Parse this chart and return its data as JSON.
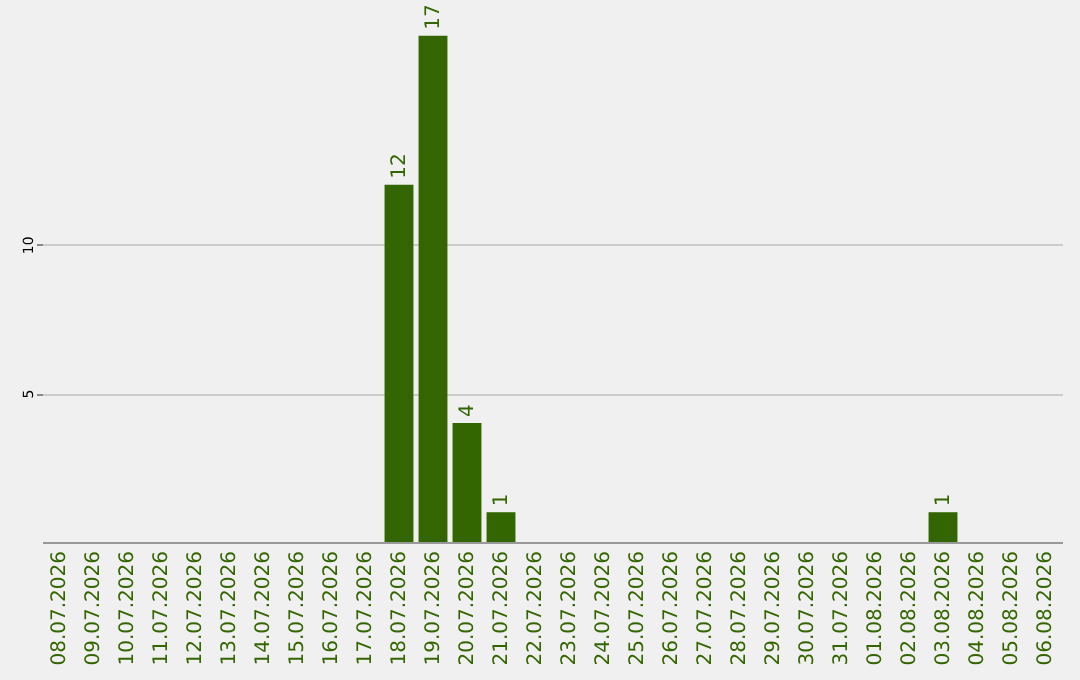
{
  "chart_data": {
    "type": "bar",
    "categories": [
      "08.07.2026",
      "09.07.2026",
      "10.07.2026",
      "11.07.2026",
      "12.07.2026",
      "13.07.2026",
      "14.07.2026",
      "15.07.2026",
      "16.07.2026",
      "17.07.2026",
      "18.07.2026",
      "19.07.2026",
      "20.07.2026",
      "21.07.2026",
      "22.07.2026",
      "23.07.2026",
      "24.07.2026",
      "25.07.2026",
      "26.07.2026",
      "27.07.2026",
      "28.07.2026",
      "29.07.2026",
      "30.07.2026",
      "31.07.2026",
      "01.08.2026",
      "02.08.2026",
      "03.08.2026",
      "04.08.2026",
      "05.08.2026",
      "06.08.2026"
    ],
    "values": [
      0,
      0,
      0,
      0,
      0,
      0,
      0,
      0,
      0,
      0,
      12,
      17,
      4,
      1,
      0,
      0,
      0,
      0,
      0,
      0,
      0,
      0,
      0,
      0,
      0,
      0,
      1,
      0,
      0,
      0
    ],
    "value_labels": [
      null,
      null,
      null,
      null,
      null,
      null,
      null,
      null,
      null,
      null,
      "12",
      "17",
      "4",
      "1",
      null,
      null,
      null,
      null,
      null,
      null,
      null,
      null,
      null,
      null,
      null,
      null,
      "1",
      null,
      null,
      null
    ],
    "color": "#336600",
    "ylim": [
      0,
      18
    ],
    "yticks": [
      5,
      10
    ],
    "grid": "y"
  }
}
